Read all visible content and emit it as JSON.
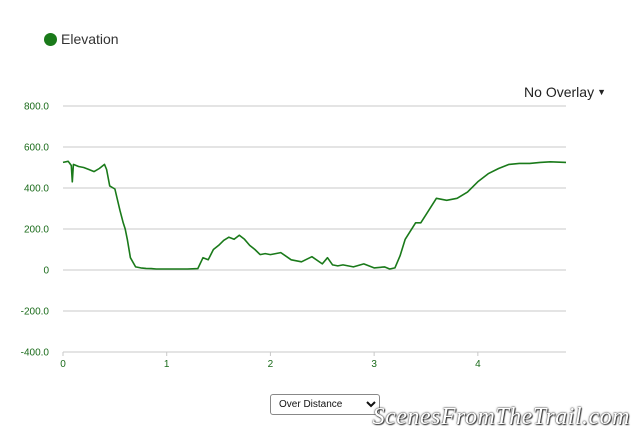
{
  "legend": {
    "label": "Elevation",
    "color": "#1a7a1a"
  },
  "overlay": {
    "label": "No Overlay",
    "icon": "caret-down-icon"
  },
  "mode_select": {
    "selected": "Over Distance"
  },
  "watermark": "ScenesFromTheTrail.com",
  "chart_data": {
    "type": "line",
    "title": "",
    "xlabel": "",
    "ylabel": "",
    "xlim": [
      0,
      4.85
    ],
    "ylim": [
      -400,
      800
    ],
    "y_ticks": [
      800.0,
      600.0,
      400.0,
      200.0,
      0,
      -200.0,
      -400.0
    ],
    "y_tick_labels": [
      "800.0",
      "600.0",
      "400.0",
      "200.0",
      "0",
      "-200.0",
      "-400.0"
    ],
    "x_ticks": [
      0,
      1,
      2,
      3,
      4
    ],
    "x_tick_labels": [
      "0",
      "1",
      "2",
      "3",
      "4"
    ],
    "grid": true,
    "series": [
      {
        "name": "Elevation",
        "color": "#1a7a1a",
        "x": [
          0,
          0.05,
          0.08,
          0.09,
          0.1,
          0.15,
          0.2,
          0.25,
          0.3,
          0.35,
          0.4,
          0.42,
          0.45,
          0.5,
          0.55,
          0.58,
          0.6,
          0.62,
          0.65,
          0.7,
          0.75,
          0.8,
          0.85,
          0.9,
          1.0,
          1.1,
          1.2,
          1.3,
          1.35,
          1.4,
          1.45,
          1.5,
          1.55,
          1.6,
          1.65,
          1.7,
          1.75,
          1.8,
          1.85,
          1.9,
          1.95,
          2.0,
          2.1,
          2.2,
          2.3,
          2.4,
          2.5,
          2.55,
          2.6,
          2.65,
          2.7,
          2.8,
          2.9,
          3.0,
          3.1,
          3.15,
          3.2,
          3.25,
          3.3,
          3.35,
          3.4,
          3.45,
          3.5,
          3.6,
          3.7,
          3.8,
          3.9,
          4.0,
          4.1,
          4.2,
          4.3,
          4.4,
          4.5,
          4.6,
          4.7,
          4.85
        ],
        "values": [
          525,
          530,
          510,
          430,
          515,
          505,
          500,
          490,
          480,
          495,
          515,
          490,
          410,
          395,
          290,
          230,
          200,
          150,
          60,
          15,
          10,
          8,
          7,
          5,
          5,
          5,
          5,
          7,
          60,
          50,
          100,
          120,
          145,
          160,
          150,
          170,
          150,
          120,
          100,
          75,
          80,
          75,
          85,
          50,
          40,
          65,
          30,
          60,
          25,
          20,
          25,
          15,
          30,
          10,
          15,
          5,
          10,
          70,
          150,
          190,
          230,
          230,
          270,
          350,
          340,
          350,
          380,
          430,
          470,
          495,
          515,
          520,
          520,
          525,
          528,
          525
        ]
      }
    ]
  }
}
